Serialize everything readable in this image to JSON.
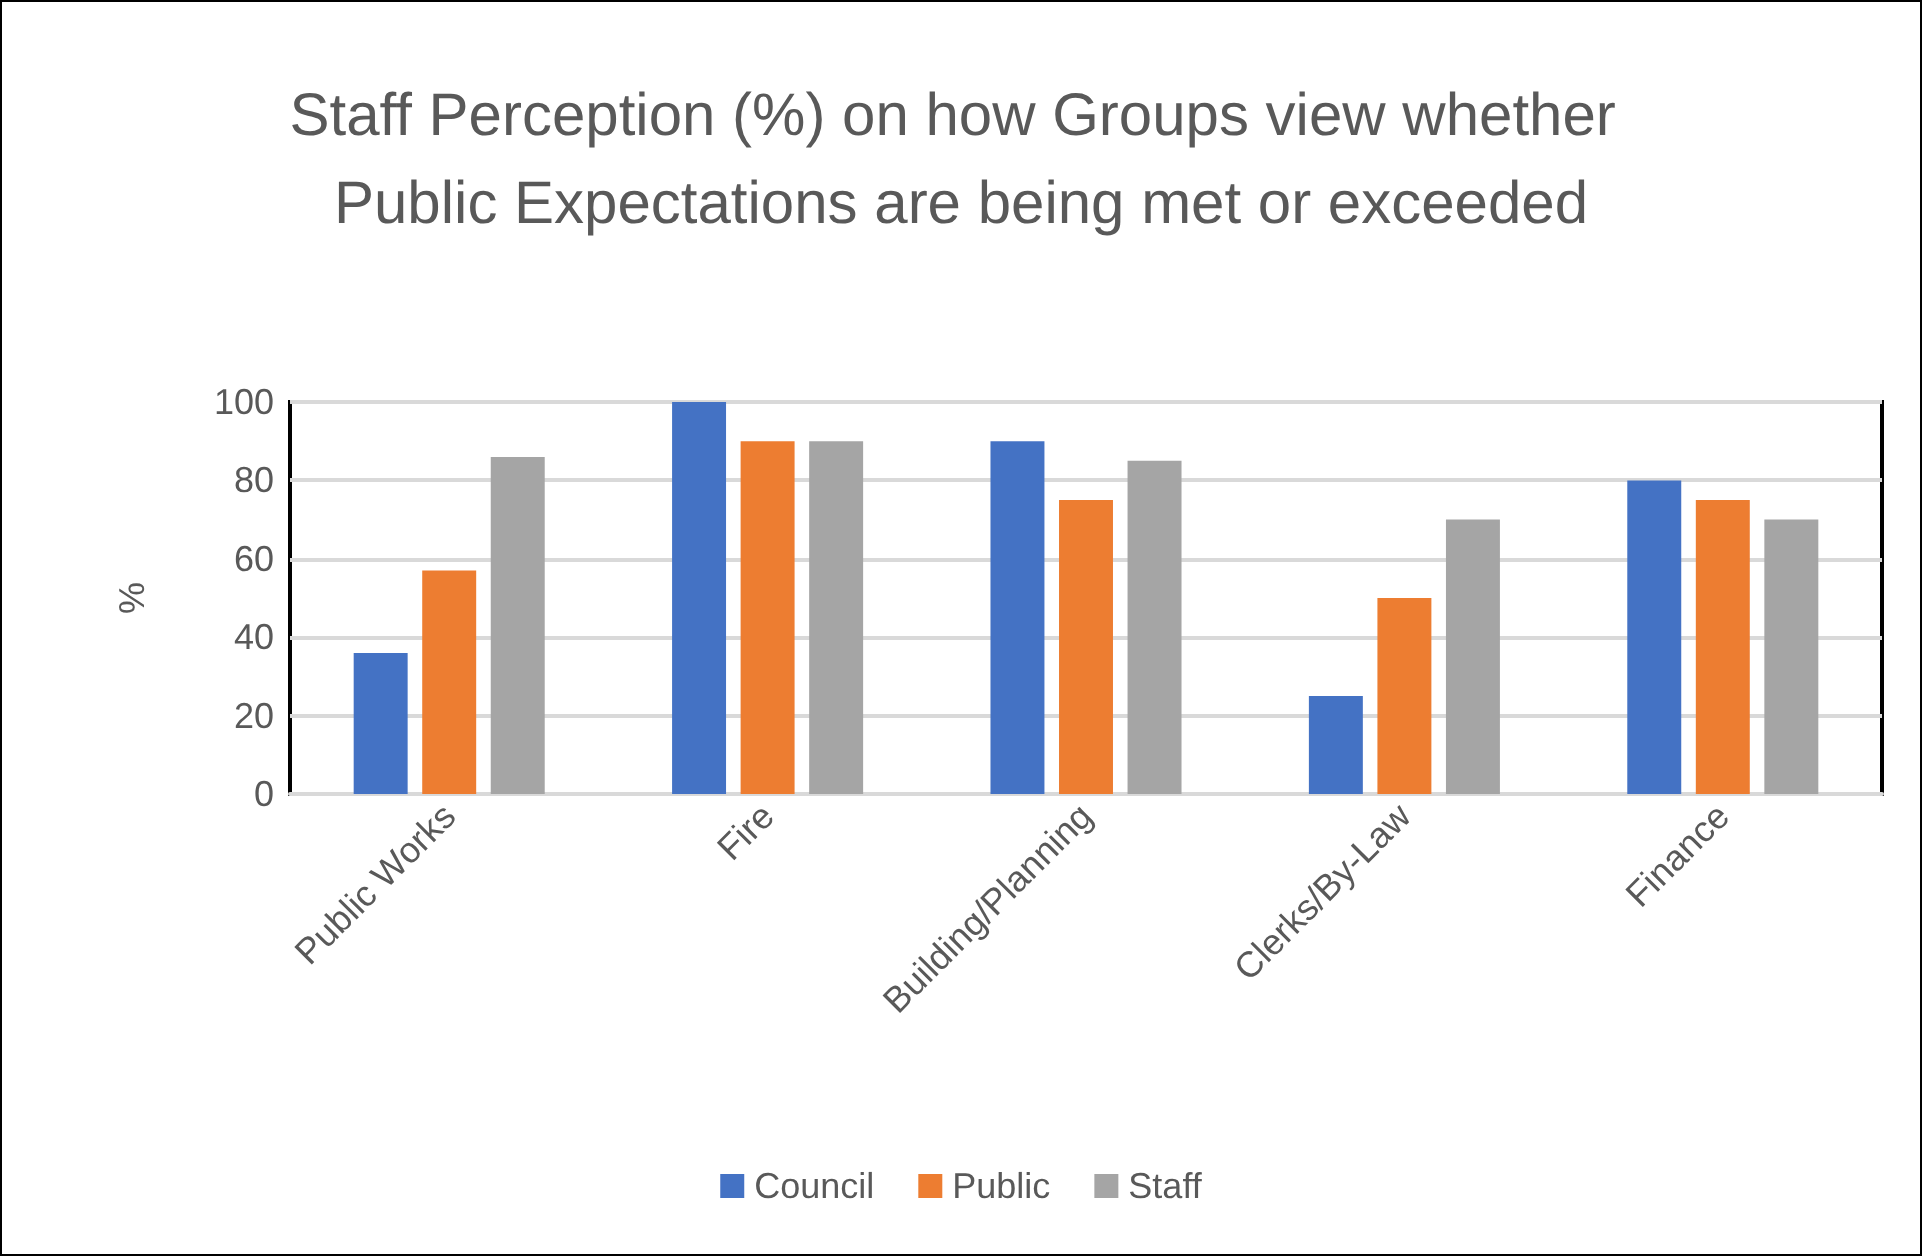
{
  "chart_data": {
    "type": "bar",
    "title": "Staff Perception (%) on how Groups view whether Public Expectations are being met or exceeded",
    "ylabel": "%",
    "categories": [
      "Public Works",
      "Fire",
      "Building/Planning",
      "Clerks/By-Law",
      "Finance"
    ],
    "series": [
      {
        "name": "Council",
        "color": "#4472c4",
        "values": [
          36,
          100,
          90,
          25,
          80
        ]
      },
      {
        "name": "Public",
        "color": "#ed7d31",
        "values": [
          57,
          90,
          75,
          50,
          75
        ]
      },
      {
        "name": "Staff",
        "color": "#a5a5a5",
        "values": [
          86,
          90,
          85,
          70,
          70
        ]
      }
    ],
    "ylim": [
      0,
      100
    ],
    "yticks": [
      0,
      20,
      40,
      60,
      80,
      100
    ],
    "grid": "y",
    "legend": "bottom"
  }
}
